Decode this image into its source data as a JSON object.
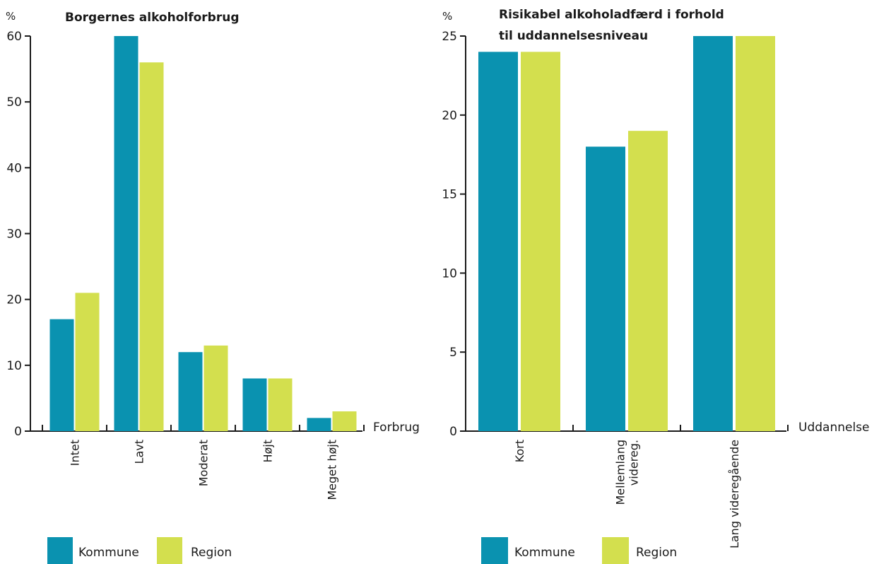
{
  "colors": {
    "kommune": "#0a92b0",
    "region": "#d3df4e",
    "axis": "#1a1a1a"
  },
  "chart_data": [
    {
      "type": "bar",
      "title_lines": [
        "Borgernes alkoholforbrug"
      ],
      "unit_label": "%",
      "xlabel": "Forbrug",
      "ylabel": "",
      "ylim": [
        0,
        60
      ],
      "yticks": [
        "0",
        "10",
        "20",
        "30",
        "40",
        "50",
        "60"
      ],
      "categories": [
        {
          "lines": [
            "Intet"
          ]
        },
        {
          "lines": [
            "Lavt"
          ]
        },
        {
          "lines": [
            "Moderat"
          ]
        },
        {
          "lines": [
            "Højt"
          ]
        },
        {
          "lines": [
            "Meget højt"
          ]
        }
      ],
      "series": [
        {
          "name": "Kommune",
          "values": [
            17,
            60,
            12,
            8,
            2
          ]
        },
        {
          "name": "Region",
          "values": [
            21,
            56,
            13,
            8,
            3
          ]
        }
      ],
      "legend": [
        "Kommune",
        "Region"
      ]
    },
    {
      "type": "bar",
      "title_lines": [
        "Risikabel alkoholadfærd i forhold",
        "til uddannelsesniveau"
      ],
      "unit_label": "%",
      "xlabel": "Uddannelse",
      "ylabel": "",
      "ylim": [
        0,
        25
      ],
      "yticks": [
        "0",
        "5",
        "10",
        "15",
        "20",
        "25"
      ],
      "categories": [
        {
          "lines": [
            "Kort"
          ]
        },
        {
          "lines": [
            "Mellemlang",
            "videreg."
          ]
        },
        {
          "lines": [
            "Lang videregående"
          ]
        }
      ],
      "series": [
        {
          "name": "Kommune",
          "values": [
            24,
            18,
            25
          ]
        },
        {
          "name": "Region",
          "values": [
            24,
            19,
            25
          ]
        }
      ],
      "legend": [
        "Kommune",
        "Region"
      ]
    }
  ]
}
